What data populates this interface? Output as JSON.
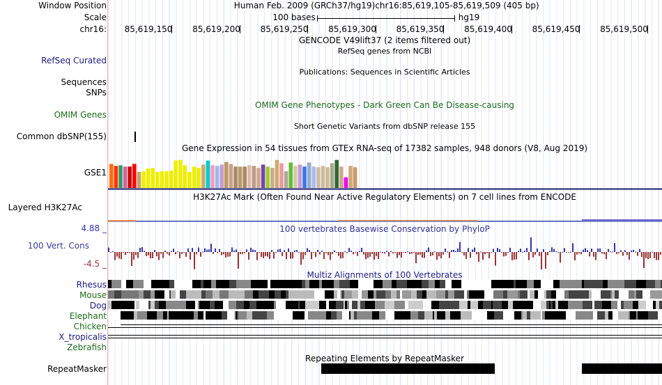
{
  "labels": {
    "window_position": "Window Position",
    "scale": "Scale",
    "chrom": "chr16:",
    "refseq": "RefSeq Curated",
    "sequences": "Sequences",
    "snps": "SNPs",
    "omim": "OMIM Genes",
    "dbsnp": "Common dbSNP(155)",
    "gse1": "GSE1",
    "h3k27ac": "Layered H3K27Ac",
    "cons_max": "4.88 _",
    "cons_name": "100 Vert. Cons",
    "cons_min": "-4.5 _",
    "rhesus": "Rhesus",
    "mouse": "Mouse",
    "dog": "Dog",
    "elephant": "Elephant",
    "chicken": "Chicken",
    "xtrop": "X_tropicalis",
    "zebrafish": "Zebrafish",
    "repeatmasker": "RepeatMasker"
  },
  "header": {
    "assembly": "Human Feb. 2009 (GRCh37/hg19)",
    "position": "chr16:85,619,105-85,619,509 (405 bp)",
    "scale_text": "100 bases",
    "scale_db": "hg19"
  },
  "ruler": [
    "85,619,150",
    "85,619,200",
    "85,619,250",
    "85,619,300",
    "85,619,350",
    "85,619,400",
    "85,619,450",
    "85,619,500"
  ],
  "tracks": {
    "gencode": "GENCODE V49lift37 (2 items filtered out)",
    "refseq_desc": "RefSeq genes from NCBI",
    "publications": "Publications: Sequences in Scientific Articles",
    "omim_desc": "OMIM Gene Phenotypes - Dark Green Can Be Disease-causing",
    "dbsnp_desc": "Short Genetic Variants from dbSNP release 155",
    "gtex_desc": "Gene Expression in 54 tissues from GTEx RNA-seq of 17382 samples, 948 donors (V8, Aug 2019)",
    "h3k27ac_desc": "H3K27Ac Mark (Often Found Near Active Regulatory Elements) on 7 cell lines from ENCODE",
    "phylop_desc": "100 vertebrates Basewise Conservation by PhyloP",
    "multiz_desc": "Multiz Alignments of 100 Vertebrates",
    "repeat_desc": "Repeating Elements by RepeatMasker"
  },
  "gtex": {
    "values": [
      0.72,
      0.66,
      0.68,
      0.64,
      0.64,
      0.72,
      0.48,
      0.5,
      0.58,
      0.6,
      0.48,
      0.5,
      0.5,
      0.52,
      0.82,
      0.84,
      0.68,
      0.48,
      0.64,
      0.6,
      0.7,
      0.82,
      0.68,
      0.66,
      0.7,
      0.78,
      0.72,
      0.64,
      0.64,
      0.64,
      0.68,
      0.66,
      0.6,
      0.7,
      0.64,
      0.6,
      0.84,
      0.74,
      0.5,
      0.76,
      0.66,
      0.7,
      0.64,
      0.76,
      0.64,
      0.62,
      0.66,
      0.62,
      0.74,
      0.84,
      0.64,
      0.32,
      0.66,
      0.62
    ],
    "colors": [
      "#ff6f00",
      "#ff3300",
      "#339966",
      "#cc6699",
      "#cc0000",
      "#ff0000",
      "#c4a070",
      "#eeee00",
      "#eeee00",
      "#eeee00",
      "#eeee00",
      "#eeee00",
      "#eeee00",
      "#eeee00",
      "#eeee00",
      "#eeee00",
      "#eeee00",
      "#eeee00",
      "#eeee00",
      "#eeee00",
      "#ccaa77",
      "#00cccc",
      "#ff99bb",
      "#99bbee",
      "#cc99cc",
      "#bb9966",
      "#cca088",
      "#aa8866",
      "#bb9966",
      "#aa8866",
      "#ddbbaa",
      "#bb9988",
      "#ccaa88",
      "#7744aa",
      "#99cc33",
      "#ccaa88",
      "#ccaa77",
      "#ee9999",
      "#aaaa99",
      "#66bb33",
      "#ccccaa",
      "#cc99cc",
      "#3377ee",
      "#99aacc",
      "#aabbee",
      "#ccbbaa",
      "#ccbb99",
      "#ccbb99",
      "#aaaa88",
      "#336633",
      "#ccaa88",
      "#ee00ee",
      "#ccaa77",
      "#cc9966"
    ]
  },
  "phylop": {
    "seed": 7
  },
  "multiz": {
    "seed": 3
  }
}
